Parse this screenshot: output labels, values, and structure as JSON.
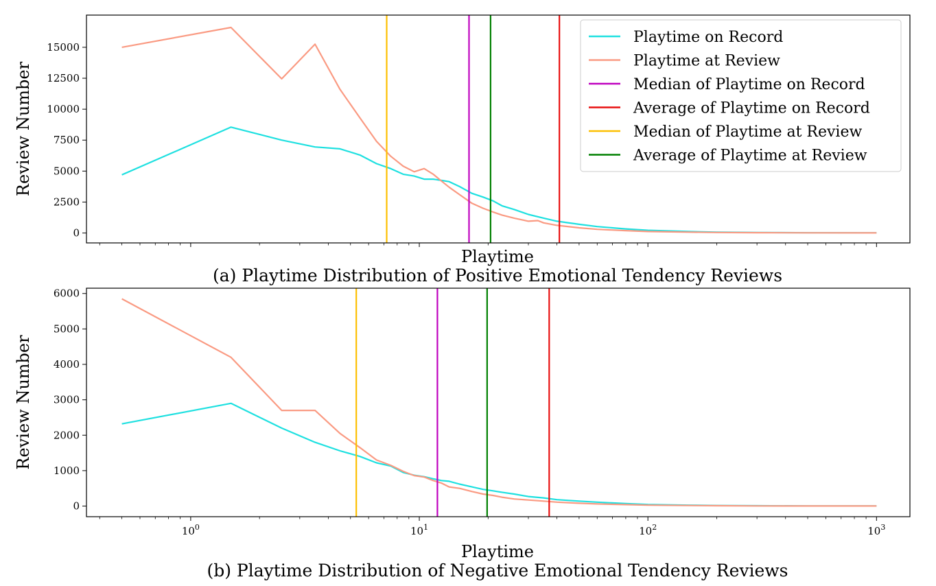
{
  "colors": {
    "playtime_on_record": "#1ee0e0",
    "playtime_at_review": "#fa9a82",
    "median_on_record": "#bf00bf",
    "average_on_record": "#e81010",
    "median_at_review": "#fdbf00",
    "average_at_review": "#008000"
  },
  "legend": [
    {
      "label": "Playtime on Record",
      "color": "#1ee0e0"
    },
    {
      "label": "Playtime at Review",
      "color": "#fa9a82"
    },
    {
      "label": "Median of Playtime on Record",
      "color": "#bf00bf"
    },
    {
      "label": "Average of Playtime on Record",
      "color": "#e81010"
    },
    {
      "label": "Median of Playtime at Review",
      "color": "#fdbf00"
    },
    {
      "label": "Average of Playtime at Review",
      "color": "#008000"
    }
  ],
  "chart_data": [
    {
      "type": "line",
      "caption": "(a) Playtime Distribution of Positive Emotional Tendency Reviews",
      "xlabel": "Playtime",
      "ylabel": "Review Number",
      "xscale": "log",
      "xlim": [
        0.35,
        1400
      ],
      "ylim": [
        -800,
        17600
      ],
      "yticks": [
        0,
        2500,
        5000,
        7500,
        10000,
        12500,
        15000
      ],
      "xticks": [
        1,
        10,
        100,
        1000
      ],
      "show_x_tick_labels": false,
      "legend_placement": "top-right",
      "grid": false,
      "series": [
        {
          "name": "Playtime on Record",
          "x": [
            0.5,
            1.5,
            2.5,
            3.5,
            4.5,
            5.5,
            6.5,
            7.5,
            8.5,
            9.5,
            10.5,
            11.5,
            12.5,
            13.5,
            15,
            17,
            19,
            21,
            23,
            26,
            30,
            35,
            40,
            50,
            60,
            80,
            100,
            150,
            200,
            300,
            500,
            1000
          ],
          "y": [
            4700,
            8550,
            7500,
            6950,
            6800,
            6300,
            5600,
            5200,
            4750,
            4600,
            4350,
            4350,
            4250,
            4150,
            3750,
            3200,
            2900,
            2600,
            2200,
            1900,
            1500,
            1200,
            950,
            700,
            520,
            330,
            220,
            120,
            70,
            40,
            20,
            10
          ]
        },
        {
          "name": "Playtime at Review",
          "x": [
            0.5,
            1.5,
            2.5,
            3.5,
            4.5,
            5.5,
            6.5,
            7.5,
            8.5,
            9.5,
            10.5,
            11.5,
            12.5,
            13.5,
            15,
            17,
            19,
            21,
            23,
            26,
            30,
            33,
            35,
            40,
            50,
            60,
            80,
            100,
            150,
            200,
            300,
            500,
            1000
          ],
          "y": [
            15000,
            16600,
            12450,
            15250,
            11600,
            9300,
            7400,
            6200,
            5400,
            4950,
            5200,
            4750,
            4200,
            3700,
            3100,
            2400,
            2000,
            1700,
            1450,
            1200,
            950,
            1000,
            820,
            620,
            420,
            300,
            190,
            120,
            70,
            40,
            25,
            15,
            8
          ]
        }
      ],
      "reference_lines": [
        {
          "name": "Median of Playtime at Review",
          "x": 7.2
        },
        {
          "name": "Median of Playtime on Record",
          "x": 16.5
        },
        {
          "name": "Average of Playtime at Review",
          "x": 20.5
        },
        {
          "name": "Average of Playtime on Record",
          "x": 41
        }
      ]
    },
    {
      "type": "line",
      "caption": "(b) Playtime Distribution of Negative Emotional Tendency Reviews",
      "xlabel": "Playtime",
      "ylabel": "Review Number",
      "xscale": "log",
      "xlim": [
        0.35,
        1400
      ],
      "ylim": [
        -300,
        6150
      ],
      "yticks": [
        0,
        1000,
        2000,
        3000,
        4000,
        5000,
        6000
      ],
      "xticks": [
        1,
        10,
        100,
        1000
      ],
      "show_x_tick_labels": true,
      "grid": false,
      "series": [
        {
          "name": "Playtime on Record",
          "x": [
            0.5,
            1.5,
            2.5,
            3.5,
            4.5,
            5.5,
            6.5,
            7.5,
            8.5,
            9.5,
            10.5,
            11.5,
            12.5,
            13.5,
            15,
            17,
            19,
            21,
            23,
            26,
            30,
            35,
            40,
            50,
            60,
            80,
            100,
            150,
            200,
            300,
            500,
            1000
          ],
          "y": [
            2320,
            2900,
            2200,
            1800,
            1560,
            1400,
            1220,
            1130,
            950,
            870,
            830,
            770,
            720,
            700,
            620,
            540,
            470,
            430,
            390,
            340,
            270,
            230,
            180,
            140,
            110,
            70,
            45,
            25,
            15,
            10,
            5,
            3
          ]
        },
        {
          "name": "Playtime at Review",
          "x": [
            0.5,
            1.5,
            2.5,
            3.5,
            4.5,
            5.5,
            6.5,
            7.5,
            8.5,
            9.5,
            10.5,
            11.5,
            12.5,
            13.5,
            15,
            17,
            19,
            21,
            23,
            26,
            30,
            35,
            40,
            50,
            60,
            80,
            100,
            150,
            200,
            300,
            500,
            1000
          ],
          "y": [
            5850,
            4200,
            2700,
            2700,
            2050,
            1650,
            1300,
            1150,
            980,
            860,
            820,
            720,
            650,
            540,
            500,
            410,
            340,
            300,
            250,
            200,
            170,
            140,
            110,
            80,
            60,
            40,
            25,
            15,
            10,
            5,
            3,
            2
          ]
        }
      ],
      "reference_lines": [
        {
          "name": "Median of Playtime at Review",
          "x": 5.3
        },
        {
          "name": "Median of Playtime on Record",
          "x": 12
        },
        {
          "name": "Average of Playtime at Review",
          "x": 19.8
        },
        {
          "name": "Average of Playtime on Record",
          "x": 37
        }
      ]
    }
  ]
}
